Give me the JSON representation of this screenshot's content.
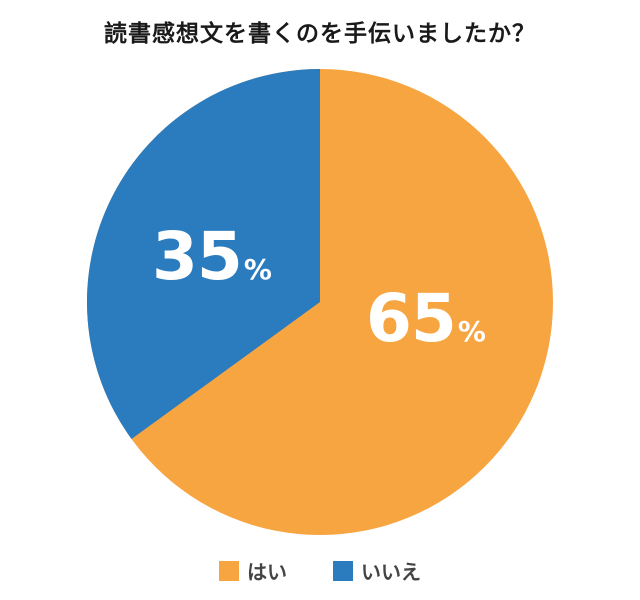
{
  "chart_data": {
    "type": "pie",
    "title": "読書感想文を書くのを手伝いましたか？",
    "categories": [
      "はい",
      "いいえ"
    ],
    "values": [
      65,
      35
    ],
    "unit": "%",
    "colors": [
      "#F7A541",
      "#2B7BBF"
    ],
    "data_labels": [
      {
        "num": "65",
        "pct": "%"
      },
      {
        "num": "35",
        "pct": "%"
      }
    ],
    "legend_position": "bottom"
  },
  "legend": [
    {
      "label": "はい",
      "color": "#F7A541"
    },
    {
      "label": "いいえ",
      "color": "#2B7BBF"
    }
  ]
}
